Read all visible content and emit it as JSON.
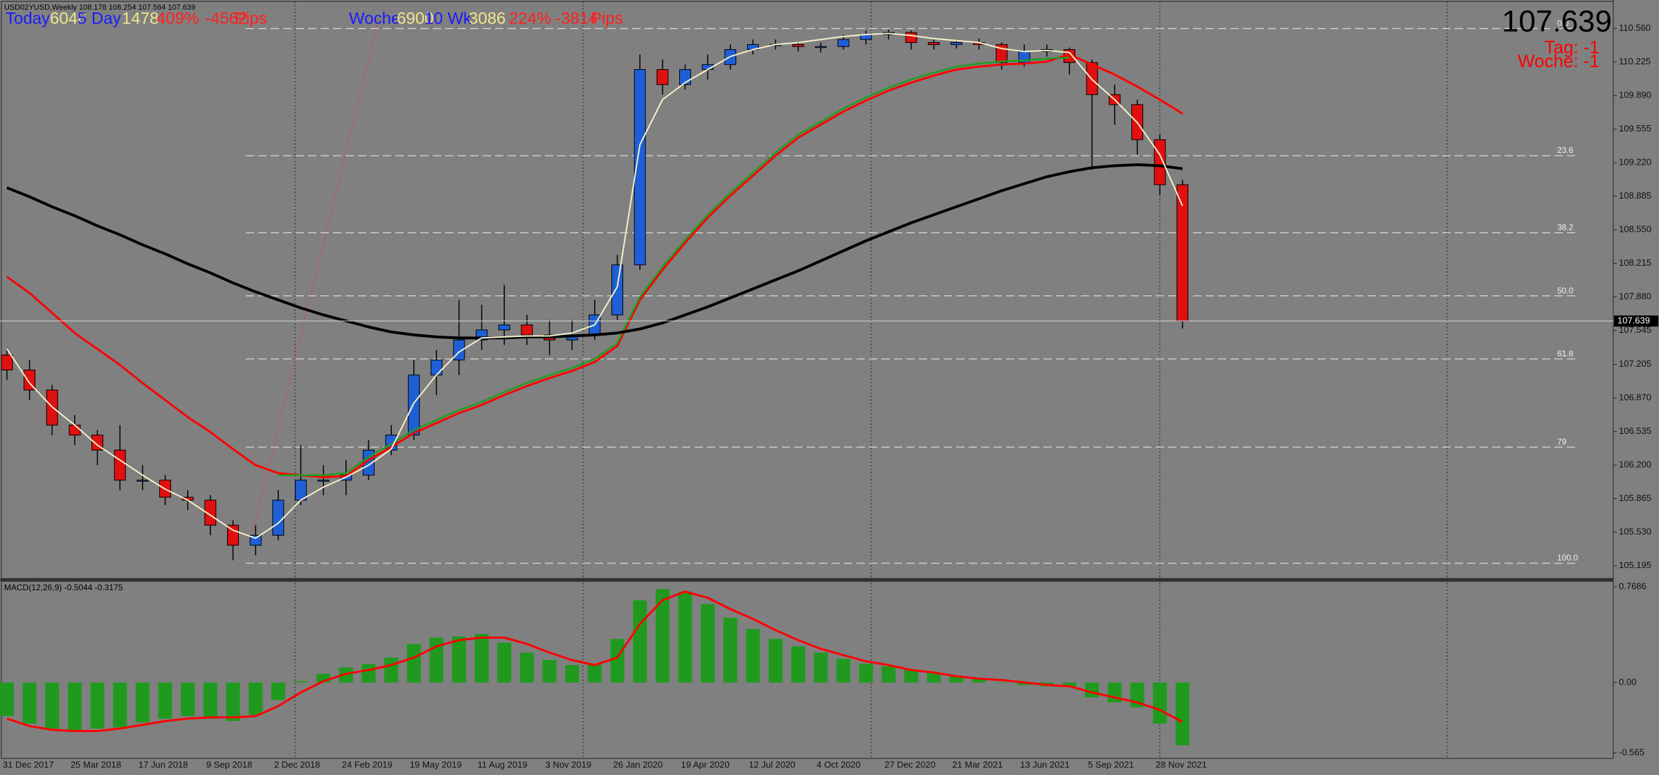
{
  "chart_data": [
    {
      "type": "candlestick",
      "title": "USD02YUSD,Weekly  108.178 108.254 107.564 107.639",
      "categories": [
        "31 Dec 2017",
        null,
        null,
        "25 Mar 2018",
        null,
        null,
        "17 Jun 2018",
        null,
        null,
        "9 Sep 2018",
        null,
        null,
        "2 Dec 2018",
        null,
        null,
        "24 Feb 2019",
        null,
        null,
        "19 May 2019",
        null,
        null,
        "11 Aug 2019",
        null,
        null,
        "3 Nov 2019",
        null,
        null,
        "26 Jan 2020",
        null,
        null,
        "19 Apr 2020",
        null,
        null,
        "12 Jul 2020",
        null,
        null,
        "4 Oct 2020",
        null,
        null,
        "27 Dec 2020",
        null,
        null,
        "21 Mar 2021",
        null,
        null,
        "13 Jun 2021",
        null,
        null,
        "5 Sep 2021",
        null,
        null,
        "28 Nov 2021",
        null
      ],
      "open": [
        107.3,
        107.15,
        106.95,
        106.6,
        106.5,
        106.35,
        106.05,
        106.05,
        105.88,
        105.85,
        105.6,
        105.4,
        105.5,
        105.85,
        106.05,
        106.05,
        106.1,
        106.35,
        106.5,
        107.1,
        107.25,
        107.45,
        107.55,
        107.6,
        107.5,
        107.45,
        107.5,
        107.7,
        108.2,
        110.15,
        110.0,
        110.15,
        110.2,
        110.35,
        110.4,
        110.4,
        110.38,
        110.38,
        110.45,
        110.5,
        110.52,
        110.42,
        110.4,
        110.42,
        110.4,
        110.22,
        110.33,
        110.35,
        110.22,
        109.9,
        109.8,
        109.45,
        109.0
      ],
      "high": [
        107.35,
        107.25,
        107.0,
        106.7,
        106.55,
        106.6,
        106.2,
        106.1,
        105.95,
        105.9,
        105.65,
        105.6,
        105.95,
        106.4,
        106.2,
        106.25,
        106.45,
        106.6,
        107.25,
        107.35,
        107.85,
        107.8,
        108.0,
        107.7,
        107.65,
        107.65,
        107.85,
        108.3,
        110.3,
        110.25,
        110.2,
        110.3,
        110.4,
        110.45,
        110.45,
        110.43,
        110.42,
        110.5,
        110.54,
        110.55,
        110.54,
        110.45,
        110.45,
        110.46,
        110.42,
        110.4,
        110.4,
        110.37,
        110.25,
        110.0,
        109.85,
        109.5,
        109.05
      ],
      "low": [
        107.05,
        106.85,
        106.5,
        106.4,
        106.2,
        105.95,
        105.95,
        105.8,
        105.75,
        105.5,
        105.25,
        105.3,
        105.45,
        105.8,
        105.9,
        105.9,
        106.05,
        106.3,
        106.45,
        106.9,
        107.1,
        107.35,
        107.4,
        107.4,
        107.3,
        107.35,
        107.45,
        107.65,
        108.15,
        109.9,
        109.95,
        110.05,
        110.15,
        110.3,
        110.35,
        110.33,
        110.32,
        110.35,
        110.4,
        110.45,
        110.35,
        110.35,
        110.36,
        110.35,
        110.15,
        110.18,
        110.28,
        110.1,
        109.15,
        109.6,
        109.3,
        108.9,
        107.564
      ],
      "close": [
        107.15,
        106.95,
        106.6,
        106.5,
        106.35,
        106.05,
        106.05,
        105.88,
        105.85,
        105.6,
        105.4,
        105.5,
        105.85,
        106.05,
        106.05,
        106.1,
        106.35,
        106.5,
        107.1,
        107.25,
        107.45,
        107.55,
        107.6,
        107.5,
        107.45,
        107.5,
        107.7,
        108.2,
        110.15,
        110.0,
        110.15,
        110.2,
        110.35,
        110.4,
        110.4,
        110.38,
        110.38,
        110.45,
        110.5,
        110.52,
        110.42,
        110.4,
        110.42,
        110.4,
        110.22,
        110.33,
        110.35,
        110.22,
        109.9,
        109.8,
        109.45,
        109.0,
        107.639
      ],
      "up_color": "#1f5fd6",
      "down_color": "#e01010",
      "lines": [
        {
          "color": "#ff0000",
          "values": [
            108.08,
            107.92,
            107.72,
            107.52,
            107.36,
            107.2,
            107.02,
            106.85,
            106.68,
            106.53,
            106.36,
            106.2,
            106.12,
            106.1,
            106.08,
            106.09,
            106.25,
            106.38,
            106.52,
            106.62,
            106.72,
            106.8,
            106.9,
            106.99,
            107.07,
            107.14,
            107.23,
            107.39,
            107.85,
            108.15,
            108.42,
            108.67,
            108.89,
            109.09,
            109.29,
            109.47,
            109.6,
            109.73,
            109.84,
            109.94,
            110.02,
            110.09,
            110.15,
            110.18,
            110.2,
            110.21,
            110.23,
            110.3,
            110.2,
            110.1,
            109.98,
            109.85,
            109.71
          ]
        },
        {
          "color": "#1e9e1e",
          "values": [
            null,
            null,
            null,
            null,
            null,
            null,
            null,
            null,
            null,
            null,
            null,
            null,
            106.1,
            106.1,
            106.1,
            106.12,
            106.28,
            106.41,
            106.55,
            106.65,
            106.75,
            106.83,
            106.93,
            107.02,
            107.1,
            107.17,
            107.26,
            107.42,
            107.88,
            108.18,
            108.45,
            108.7,
            108.92,
            109.12,
            109.32,
            109.5,
            109.63,
            109.76,
            109.87,
            109.97,
            110.05,
            110.12,
            110.18,
            110.21,
            110.23,
            110.24,
            110.26,
            110.27,
            null,
            null,
            null,
            null,
            null
          ]
        },
        {
          "color": "#000000",
          "values": [
            108.97,
            108.88,
            108.78,
            108.69,
            108.59,
            108.5,
            108.4,
            108.31,
            108.21,
            108.12,
            108.02,
            107.93,
            107.85,
            107.77,
            107.7,
            107.64,
            107.58,
            107.53,
            107.5,
            107.48,
            107.47,
            107.47,
            107.47,
            107.48,
            107.48,
            107.49,
            107.5,
            107.52,
            107.56,
            107.62,
            107.7,
            107.78,
            107.87,
            107.96,
            108.05,
            108.14,
            108.24,
            108.34,
            108.44,
            108.53,
            108.62,
            108.7,
            108.78,
            108.86,
            108.94,
            109.01,
            109.08,
            109.13,
            109.17,
            109.19,
            109.2,
            109.19,
            109.16
          ]
        },
        {
          "color": "#f5f0c8",
          "values": [
            107.36,
            107.02,
            106.78,
            106.6,
            106.4,
            106.25,
            106.1,
            105.96,
            105.85,
            105.7,
            105.55,
            105.47,
            105.62,
            105.85,
            105.98,
            106.08,
            106.2,
            106.36,
            106.82,
            107.1,
            107.33,
            107.47,
            107.48,
            107.49,
            107.49,
            107.52,
            107.6,
            107.98,
            109.4,
            109.85,
            110.02,
            110.15,
            110.28,
            110.35,
            110.4,
            110.42,
            110.45,
            110.48,
            110.5,
            110.51,
            110.49,
            110.46,
            110.44,
            110.42,
            110.36,
            110.33,
            110.34,
            110.32,
            110.05,
            109.85,
            109.62,
            109.3,
            108.79
          ]
        }
      ],
      "fib_levels": [
        {
          "label": "0.0",
          "value": 110.56
        },
        {
          "label": "23.6",
          "value": 109.29
        },
        {
          "label": "38.2",
          "value": 108.52
        },
        {
          "label": "50.0",
          "value": 107.89
        },
        {
          "label": "61.8",
          "value": 107.26
        },
        {
          "label": "79",
          "value": 106.38
        },
        {
          "label": "100.0",
          "value": 105.22
        }
      ],
      "ylim": [
        105.068,
        110.824
      ],
      "yticks": [
        {
          "value": 110.56,
          "label": "110.560"
        },
        110.225,
        {
          "value": 109.89,
          "label": "109.890"
        },
        109.555,
        {
          "value": 109.22,
          "label": "109.220"
        },
        108.885,
        {
          "value": 108.55,
          "label": "108.550"
        },
        108.215,
        {
          "value": 107.88,
          "label": "107.880"
        },
        107.545,
        107.205,
        {
          "value": 106.87,
          "label": "106.870"
        },
        106.535,
        {
          "value": 106.2,
          "label": "106.200"
        },
        105.865,
        {
          "value": 105.53,
          "label": "105.530"
        },
        105.195
      ],
      "stats": [
        {
          "text": "Today",
          "color": "#1a1aff"
        },
        {
          "text": "6046",
          "color": "#f0e68c"
        },
        {
          "text": "5 Day",
          "color": "#1a1aff"
        },
        {
          "text": "1478",
          "color": "#f0e68c"
        },
        {
          "text": "409%",
          "color": "#ff2020"
        },
        {
          "text": "-4562",
          "color": "#ff2020"
        },
        {
          "text": "Pips",
          "color": "#ff2020"
        },
        {
          "text": "Woche",
          "color": "#1a1aff"
        },
        {
          "text": "6900",
          "color": "#f0e68c"
        },
        {
          "text": "10 Wk",
          "color": "#1a1aff"
        },
        {
          "text": "3086",
          "color": "#f0e68c"
        },
        {
          "text": "224%",
          "color": "#ff2020"
        },
        {
          "text": "-3814",
          "color": "#ff2020"
        },
        {
          "text": "Pips",
          "color": "#ff2020"
        }
      ],
      "info": [
        "Tag: -1",
        "Woche: -1"
      ],
      "info_color": "#ff0000"
    },
    {
      "type": "macd",
      "title": "MACD(12,26,9) -0.5044 -0.3175",
      "histogram": {
        "color": "#1f9a1f",
        "values": [
          -0.27,
          -0.33,
          -0.37,
          -0.39,
          -0.37,
          -0.36,
          -0.32,
          -0.29,
          -0.27,
          -0.29,
          -0.31,
          -0.26,
          -0.14,
          0.01,
          0.07,
          0.12,
          0.15,
          0.2,
          0.31,
          0.36,
          0.37,
          0.39,
          0.32,
          0.24,
          0.18,
          0.14,
          0.15,
          0.35,
          0.66,
          0.75,
          0.73,
          0.63,
          0.52,
          0.43,
          0.35,
          0.29,
          0.24,
          0.19,
          0.15,
          0.13,
          0.1,
          0.08,
          0.05,
          0.03,
          0.0,
          -0.02,
          -0.03,
          -0.03,
          -0.12,
          -0.16,
          -0.2,
          -0.33,
          -0.5044
        ]
      },
      "signal": {
        "color": "#ff0000",
        "values": [
          -0.29,
          -0.35,
          -0.38,
          -0.39,
          -0.39,
          -0.37,
          -0.34,
          -0.31,
          -0.29,
          -0.28,
          -0.28,
          -0.27,
          -0.19,
          -0.08,
          0.01,
          0.07,
          0.1,
          0.14,
          0.2,
          0.29,
          0.34,
          0.36,
          0.36,
          0.31,
          0.24,
          0.18,
          0.14,
          0.2,
          0.47,
          0.66,
          0.73,
          0.68,
          0.59,
          0.51,
          0.42,
          0.34,
          0.27,
          0.22,
          0.17,
          0.14,
          0.1,
          0.08,
          0.05,
          0.03,
          0.02,
          0.0,
          -0.02,
          -0.03,
          -0.08,
          -0.12,
          -0.16,
          -0.22,
          -0.3175
        ]
      },
      "ylim": [
        -0.565,
        0.7686
      ],
      "yticks": [
        0.7686,
        {
          "value": 0,
          "label": "0.00"
        },
        -0.565
      ]
    }
  ]
}
